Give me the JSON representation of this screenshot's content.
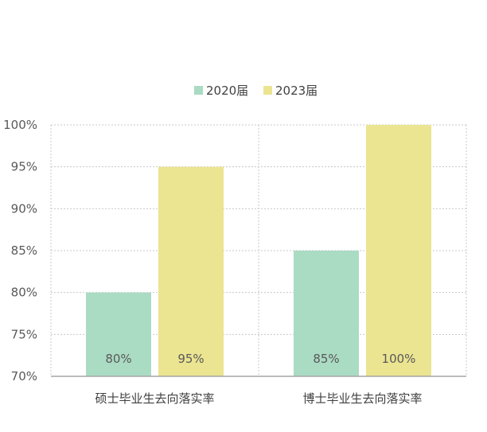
{
  "chart_data": {
    "type": "bar",
    "title": "",
    "xlabel": "",
    "ylabel": "",
    "categories": [
      "硕士毕业生去向落实率",
      "博士毕业生去向落实率"
    ],
    "series": [
      {
        "name": "2020届",
        "values": [
          80,
          85
        ],
        "labels": [
          "80%",
          "85%"
        ],
        "color": "#aadbc3"
      },
      {
        "name": "2023届",
        "values": [
          95,
          100
        ],
        "labels": [
          "95%",
          "100%"
        ],
        "color": "#ebe491"
      }
    ],
    "ylim": [
      70,
      100
    ],
    "yticks": [
      70,
      75,
      80,
      85,
      90,
      95,
      100
    ],
    "ytick_labels": [
      "70%",
      "75%",
      "80%",
      "85%",
      "90%",
      "95%",
      "100%"
    ],
    "grid": true,
    "legend_position": "top-center"
  }
}
